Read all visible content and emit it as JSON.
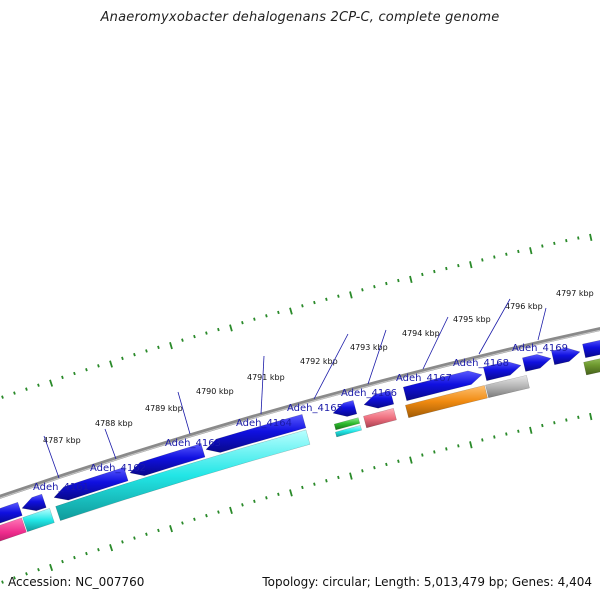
{
  "title": "Anaeromyxobacter dehalogenans 2CP-C, complete genome",
  "footer": {
    "accession": "Accession: NC_007760",
    "summary": "Topology: circular; Length: 5,013,479 bp; Genes: 4,404"
  },
  "kbp_labels": [
    "4787 kbp",
    "4788 kbp",
    "4789 kbp",
    "4790 kbp",
    "4791 kbp",
    "4792 kbp",
    "4793 kbp",
    "4794 kbp",
    "4795 kbp",
    "4796 kbp",
    "4797 kbp"
  ],
  "gene_labels": [
    "Adeh_4161",
    "Adeh_4162",
    "Adeh_4163",
    "Adeh_4164",
    "Adeh_4165",
    "Adeh_4166",
    "Adeh_4167",
    "Adeh_4168",
    "Adeh_4169"
  ],
  "colors": {
    "cds": "#1010e0",
    "cyan": "#22e6e6",
    "pink": "#ee2b8c",
    "green": "#2bb82b",
    "salmon": "#ee6f7f",
    "orange": "#f08a10",
    "gray": "#b5b5b5",
    "olive": "#6f9a30",
    "backbone": "#7a7a7a",
    "tick": "#2a8a2a"
  }
}
